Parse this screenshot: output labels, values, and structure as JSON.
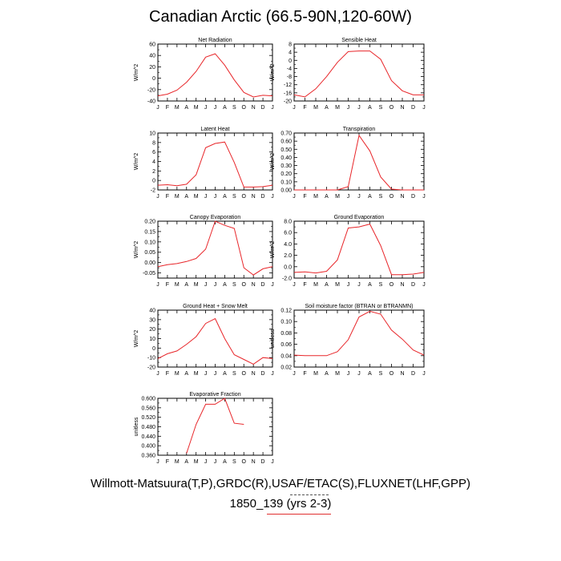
{
  "page": {
    "title": "Canadian Arctic (66.5-90N,120-60W)",
    "footer_line1": "Willmott-Matsuura(T,P),GRDC(R),USAF/ETAC(S),FLUXNET(LHF,GPP)",
    "footer_line2": "1850_139 (yrs 2-3)"
  },
  "colors": {
    "series": "#e8262a",
    "axes": "#000000"
  },
  "chart_data": [
    {
      "type": "line",
      "title": "Net Radiation",
      "ylabel": "W/m^2",
      "xticks": [
        "J",
        "F",
        "M",
        "A",
        "M",
        "J",
        "J",
        "A",
        "S",
        "O",
        "N",
        "D",
        "J"
      ],
      "ylim": [
        -40,
        60
      ],
      "yticks": [
        "60",
        "40",
        "20",
        "0",
        "-20",
        "-40"
      ],
      "ytick_values": [
        60,
        40,
        20,
        0,
        -20,
        -40
      ],
      "x": [
        1,
        2,
        3,
        4,
        5,
        6,
        7,
        8,
        9,
        10,
        11,
        12,
        13
      ],
      "y": [
        -31,
        -28,
        -21,
        -7,
        12,
        37,
        43,
        23,
        -3,
        -25,
        -33,
        -30,
        -31
      ]
    },
    {
      "type": "line",
      "title": "Sensible Heat",
      "ylabel": "W/m^2",
      "xticks": [
        "J",
        "F",
        "M",
        "A",
        "M",
        "J",
        "J",
        "A",
        "S",
        "O",
        "N",
        "D",
        "J"
      ],
      "ylim": [
        -20,
        8
      ],
      "yticks": [
        "8",
        "4",
        "0",
        "-4",
        "-8",
        "-12",
        "-16",
        "-20"
      ],
      "ytick_values": [
        8,
        4,
        0,
        -4,
        -8,
        -12,
        -16,
        -20
      ],
      "x": [
        1,
        2,
        3,
        4,
        5,
        6,
        7,
        8,
        9,
        10,
        11,
        12,
        13
      ],
      "y": [
        -17,
        -18,
        -14,
        -8,
        -1,
        4.3,
        4.6,
        4.6,
        0.5,
        -10,
        -15,
        -17,
        -17
      ]
    },
    {
      "type": "line",
      "title": "Latent Heat",
      "ylabel": "W/m^2",
      "xticks": [
        "J",
        "F",
        "M",
        "A",
        "M",
        "J",
        "J",
        "A",
        "S",
        "O",
        "N",
        "D",
        "J"
      ],
      "ylim": [
        -2,
        10
      ],
      "yticks": [
        "10",
        "8",
        "6",
        "4",
        "2",
        "0",
        "-2"
      ],
      "ytick_values": [
        10,
        8,
        6,
        4,
        2,
        0,
        -2
      ],
      "x": [
        1,
        2,
        3,
        4,
        5,
        6,
        7,
        8,
        9,
        10,
        11,
        12,
        13
      ],
      "y": [
        -1.0,
        -0.9,
        -1.1,
        -0.8,
        1.2,
        6.9,
        7.8,
        8.1,
        3.8,
        -1.4,
        -1.4,
        -1.3,
        -1.0
      ]
    },
    {
      "type": "line",
      "title": "Transpiration",
      "ylabel": "W/m^2",
      "xticks": [
        "J",
        "F",
        "M",
        "A",
        "M",
        "J",
        "J",
        "A",
        "S",
        "O",
        "N",
        "D",
        "J"
      ],
      "ylim": [
        0,
        0.7
      ],
      "yticks": [
        "0.70",
        "0.60",
        "0.50",
        "0.40",
        "0.30",
        "0.20",
        "0.10",
        "0.00"
      ],
      "ytick_values": [
        0.7,
        0.6,
        0.5,
        0.4,
        0.3,
        0.2,
        0.1,
        0.0
      ],
      "x": [
        1,
        2,
        3,
        4,
        5,
        6,
        7,
        8,
        9,
        10,
        11,
        12,
        13
      ],
      "y": [
        0,
        0,
        0,
        0,
        0,
        0.04,
        0.67,
        0.48,
        0.16,
        0.01,
        0,
        0,
        0
      ]
    },
    {
      "type": "line",
      "title": "Canopy Evaporation",
      "ylabel": "W/m^2",
      "xticks": [
        "J",
        "F",
        "M",
        "A",
        "M",
        "J",
        "J",
        "A",
        "S",
        "O",
        "N",
        "D",
        "J"
      ],
      "ylim": [
        -0.075,
        0.2
      ],
      "yticks": [
        "0.20",
        "0.15",
        "0.10",
        "0.05",
        "0.00",
        "-0.05"
      ],
      "ytick_values": [
        0.2,
        0.15,
        0.1,
        0.05,
        0.0,
        -0.05
      ],
      "x": [
        1,
        2,
        3,
        4,
        5,
        6,
        7,
        8,
        9,
        10,
        11,
        12,
        13
      ],
      "y": [
        -0.02,
        -0.01,
        -0.005,
        0.005,
        0.02,
        0.065,
        0.2,
        0.18,
        0.165,
        -0.025,
        -0.06,
        -0.03,
        -0.02
      ]
    },
    {
      "type": "line",
      "title": "Ground Evaporation",
      "ylabel": "W/m^2",
      "xticks": [
        "J",
        "F",
        "M",
        "A",
        "M",
        "J",
        "J",
        "A",
        "S",
        "O",
        "N",
        "D",
        "J"
      ],
      "ylim": [
        -2,
        8
      ],
      "yticks": [
        "8.0",
        "6.0",
        "4.0",
        "2.0",
        "0.0",
        "-2.0"
      ],
      "ytick_values": [
        8,
        6,
        4,
        2,
        0,
        -2
      ],
      "x": [
        1,
        2,
        3,
        4,
        5,
        6,
        7,
        8,
        9,
        10,
        11,
        12,
        13
      ],
      "y": [
        -1.0,
        -0.9,
        -1.1,
        -0.8,
        1.2,
        6.8,
        7.0,
        7.5,
        3.7,
        -1.4,
        -1.4,
        -1.3,
        -1.0
      ]
    },
    {
      "type": "line",
      "title": "Ground Heat + Snow Melt",
      "ylabel": "W/m^2",
      "xticks": [
        "J",
        "F",
        "M",
        "A",
        "M",
        "J",
        "J",
        "A",
        "S",
        "O",
        "N",
        "D",
        "J"
      ],
      "ylim": [
        -20,
        40
      ],
      "yticks": [
        "40",
        "30",
        "20",
        "10",
        "0",
        "-10",
        "-20"
      ],
      "ytick_values": [
        40,
        30,
        20,
        10,
        0,
        -10,
        -20
      ],
      "x": [
        1,
        2,
        3,
        4,
        5,
        6,
        7,
        8,
        9,
        10,
        11,
        12,
        13
      ],
      "y": [
        -11,
        -6,
        -3,
        4,
        12,
        26,
        31,
        10,
        -7,
        -12,
        -17,
        -10,
        -11
      ]
    },
    {
      "type": "line",
      "title": "Soil moisture factor (BTRAN or BTRANMN)",
      "ylabel": "unitless",
      "xticks": [
        "J",
        "F",
        "M",
        "A",
        "M",
        "J",
        "J",
        "A",
        "S",
        "O",
        "N",
        "D",
        "J"
      ],
      "ylim": [
        0.02,
        0.12
      ],
      "yticks": [
        "0.12",
        "0.10",
        "0.08",
        "0.06",
        "0.04",
        "0.02"
      ],
      "ytick_values": [
        0.12,
        0.1,
        0.08,
        0.06,
        0.04,
        0.02
      ],
      "x": [
        1,
        2,
        3,
        4,
        5,
        6,
        7,
        8,
        9,
        10,
        11,
        12,
        13
      ],
      "y": [
        0.041,
        0.04,
        0.04,
        0.04,
        0.047,
        0.068,
        0.108,
        0.118,
        0.113,
        0.085,
        0.069,
        0.05,
        0.041
      ]
    },
    {
      "type": "line",
      "title": "Evaporative Fraction",
      "ylabel": "unitless",
      "xticks": [
        "J",
        "F",
        "M",
        "A",
        "M",
        "J",
        "J",
        "A",
        "S",
        "O",
        "N",
        "D",
        "J"
      ],
      "ylim": [
        0.36,
        0.6
      ],
      "yticks": [
        "0.600",
        "0.560",
        "0.520",
        "0.480",
        "0.440",
        "0.400",
        "0.360"
      ],
      "ytick_values": [
        0.6,
        0.56,
        0.52,
        0.48,
        0.44,
        0.4,
        0.36
      ],
      "x": [
        4,
        5,
        6,
        7,
        8,
        9,
        10
      ],
      "y": [
        0.368,
        0.49,
        0.575,
        0.575,
        0.6,
        0.495,
        0.49
      ]
    }
  ]
}
